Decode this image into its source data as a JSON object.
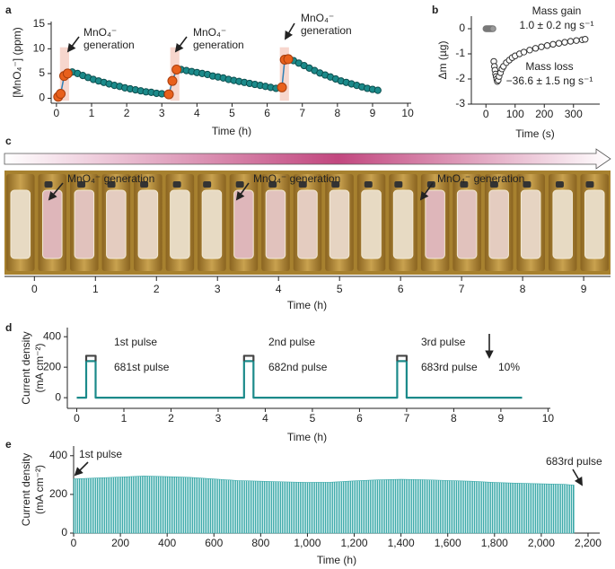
{
  "chart_data": [
    {
      "panel_label": "a",
      "type": "line",
      "markers": true,
      "line_color": "#2f7fb5",
      "xlabel": "Time (h)",
      "ylabel": "[MnO₄⁻] (ppm)",
      "xlim": [
        -0.15,
        10.1
      ],
      "ylim": [
        -1,
        15.5
      ],
      "xticks": [
        0,
        1,
        2,
        3,
        4,
        5,
        6,
        7,
        8,
        9,
        10
      ],
      "yticks": [
        0,
        5,
        10,
        15
      ],
      "shaded_regions": [
        {
          "x": [
            0.1,
            0.36
          ],
          "y": [
            -0.5,
            10.3
          ]
        },
        {
          "x": [
            3.24,
            3.5
          ],
          "y": [
            -0.5,
            10.3
          ]
        },
        {
          "x": [
            6.36,
            6.62
          ],
          "y": [
            -0.5,
            10.3
          ]
        }
      ],
      "series": [
        {
          "color": "#1b8a8a",
          "x": [
            0.45,
            0.6,
            0.75,
            0.9,
            1.05,
            1.2,
            1.35,
            1.5,
            1.65,
            1.8,
            1.95,
            2.1,
            2.25,
            2.4,
            2.55,
            2.7,
            2.85,
            3.0,
            3.15,
            null,
            3.55,
            3.7,
            3.85,
            4.0,
            4.15,
            4.3,
            4.45,
            4.6,
            4.75,
            4.9,
            5.05,
            5.2,
            5.35,
            5.5,
            5.65,
            5.8,
            5.95,
            6.1,
            6.25,
            null,
            6.75,
            6.9,
            7.05,
            7.2,
            7.35,
            7.5,
            7.65,
            7.8,
            7.95,
            8.1,
            8.25,
            8.4,
            8.55,
            8.7,
            8.85,
            9.0,
            9.15
          ],
          "values": [
            5.3,
            5.0,
            4.6,
            4.2,
            3.8,
            3.5,
            3.2,
            2.9,
            2.6,
            2.4,
            2.1,
            1.9,
            1.7,
            1.5,
            1.3,
            1.2,
            1.0,
            0.9,
            0.8,
            null,
            5.8,
            5.6,
            5.4,
            5.2,
            5.0,
            4.8,
            4.5,
            4.3,
            4.1,
            3.8,
            3.6,
            3.4,
            3.2,
            3.0,
            2.8,
            2.6,
            2.4,
            2.2,
            2.0,
            null,
            7.6,
            7.1,
            6.6,
            6.1,
            5.6,
            5.1,
            4.7,
            4.3,
            3.9,
            3.5,
            3.2,
            2.9,
            2.6,
            2.3,
            2.0,
            1.8,
            1.6
          ]
        },
        {
          "color": "#e8601c",
          "x": [
            0.05,
            0.12,
            0.22,
            0.32,
            null,
            3.2,
            3.3,
            3.42,
            null,
            6.42,
            6.5,
            6.6
          ],
          "values": [
            0.3,
            0.9,
            4.5,
            5.0,
            null,
            0.8,
            3.5,
            5.8,
            null,
            2.2,
            7.8,
            7.9
          ]
        }
      ],
      "annotations": [
        [
          "MnO₄⁻",
          "generation"
        ],
        [
          "MnO₄⁻",
          "generation"
        ],
        [
          "MnO₄⁻",
          "generation"
        ]
      ]
    },
    {
      "panel_label": "b",
      "type": "scatter",
      "xlabel": "Time (s)",
      "ylabel": "Δm (µg)",
      "xlim": [
        -50,
        390
      ],
      "ylim": [
        -3,
        0.5
      ],
      "xticks": [
        0,
        100,
        200,
        300
      ],
      "yticks": [
        0,
        -1,
        -2,
        -3
      ],
      "series": [
        {
          "color": "#9a9a9a",
          "x": [
            0,
            3,
            6,
            9,
            12,
            15,
            18,
            21,
            24
          ],
          "values": [
            0,
            0,
            0,
            0,
            0,
            0,
            0,
            0,
            0
          ]
        },
        {
          "color": "#333333",
          "x": [
            27,
            29,
            31,
            33,
            35,
            37,
            39
          ],
          "values": [
            -1.3,
            -1.5,
            -1.65,
            -1.8,
            -1.9,
            -2.0,
            -2.1
          ]
        },
        {
          "color": "#333333",
          "x": [
            42,
            45,
            50,
            55,
            60,
            70,
            80,
            90,
            100,
            115,
            130,
            150,
            170,
            190,
            210,
            230,
            250,
            270,
            290,
            310,
            330,
            340
          ],
          "values": [
            -2.05,
            -1.9,
            -1.75,
            -1.6,
            -1.5,
            -1.35,
            -1.25,
            -1.15,
            -1.08,
            -1.0,
            -0.93,
            -0.85,
            -0.78,
            -0.72,
            -0.67,
            -0.62,
            -0.58,
            -0.54,
            -0.5,
            -0.47,
            -0.44,
            -0.42
          ]
        }
      ],
      "annotations": [
        "Mass gain",
        "1.0 ± 0.2 ng s⁻¹",
        "Mass loss",
        "−36.6 ± 1.5 ng s⁻¹"
      ]
    },
    {
      "panel_label": "c",
      "type": "photo-strip",
      "xlabel": "Time (h)",
      "xlim": [
        -0.49,
        9.44
      ],
      "xticks": [
        0,
        1,
        2,
        3,
        4,
        5,
        6,
        7,
        8,
        9
      ],
      "annotations": [
        "MnO₄⁻ generation",
        "MnO₄⁻ generation",
        "MnO₄⁻ generation"
      ]
    },
    {
      "panel_label": "d",
      "type": "line",
      "xlabel": "Time (h)",
      "ylabel": [
        "Current density",
        "(mA cm⁻²)"
      ],
      "xlim": [
        -0.2,
        10.05
      ],
      "ylim": [
        -70,
        460
      ],
      "xticks": [
        0,
        1,
        2,
        3,
        4,
        5,
        6,
        7,
        8,
        9,
        10
      ],
      "yticks": [
        0,
        200,
        400
      ],
      "series": [
        {
          "color": "#1b8a8a",
          "x": [
            0,
            0.2,
            0.2,
            0.4,
            0.4,
            3.55,
            3.55,
            3.75,
            3.75,
            6.8,
            6.8,
            7.0,
            7.0,
            9.45
          ],
          "values": [
            0,
            0,
            240,
            240,
            0,
            0,
            240,
            240,
            0,
            0,
            240,
            240,
            0,
            0
          ]
        },
        {
          "color": "#444444",
          "x": [
            0.2,
            0.2,
            0.4,
            0.4,
            null,
            3.55,
            3.55,
            3.75,
            3.75,
            null,
            6.8,
            6.8,
            7.0,
            7.0
          ],
          "values": [
            240,
            275,
            275,
            240,
            null,
            240,
            275,
            275,
            240,
            null,
            240,
            275,
            275,
            240
          ]
        }
      ],
      "pulse_labels": [
        "1st pulse",
        "681st pulse",
        "2nd pulse",
        "682nd pulse",
        "3rd pulse",
        "683rd pulse"
      ],
      "annotation": "10%"
    },
    {
      "panel_label": "e",
      "type": "area",
      "color": "#3aa8a8",
      "xlabel": "Time (h)",
      "ylabel": [
        "Current density",
        "(mA cm⁻²)"
      ],
      "xlim": [
        0,
        2250
      ],
      "ylim": [
        0,
        450
      ],
      "xticks": [
        0,
        200,
        400,
        600,
        800,
        {
          "value": 1000,
          "label": "1,000"
        },
        {
          "value": 1200,
          "label": "1,200"
        },
        {
          "value": 1400,
          "label": "1,400"
        },
        {
          "value": 1600,
          "label": "1,600"
        },
        {
          "value": 1800,
          "label": "1,800"
        },
        {
          "value": 2000,
          "label": "2,000"
        },
        {
          "value": 2200,
          "label": "2,200"
        }
      ],
      "yticks": [
        0,
        200,
        400
      ],
      "x": [
        0,
        100,
        200,
        300,
        400,
        500,
        600,
        700,
        800,
        900,
        1000,
        1100,
        1200,
        1300,
        1400,
        1500,
        1600,
        1700,
        1800,
        1900,
        2000,
        2100,
        2140
      ],
      "values": [
        280,
        285,
        290,
        295,
        292,
        288,
        280,
        272,
        268,
        265,
        262,
        263,
        270,
        275,
        278,
        276,
        272,
        268,
        262,
        258,
        255,
        252,
        248
      ],
      "annotations": [
        "1st pulse",
        "683rd pulse"
      ]
    }
  ]
}
